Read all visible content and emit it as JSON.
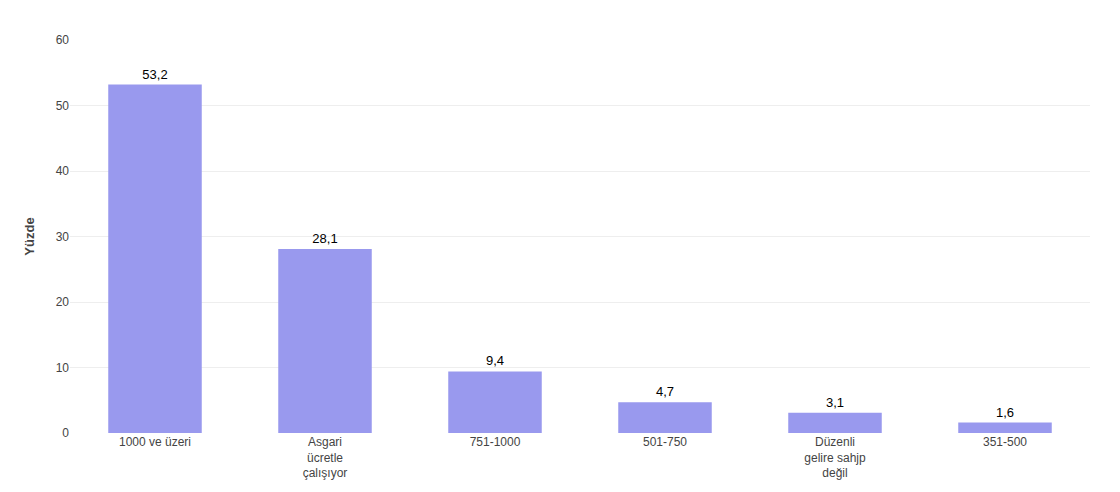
{
  "chart_data": {
    "type": "bar",
    "categories": [
      "1000 ve üzeri",
      "Asgari\nücretle\nçalışıyor",
      "751-1000",
      "501-750",
      "Düzenli\ngelire sahjp\ndeğil",
      "351-500"
    ],
    "values": [
      53.2,
      28.1,
      9.4,
      4.7,
      3.1,
      1.6
    ],
    "value_labels": [
      "53,2",
      "28,1",
      "9,4",
      "4,7",
      "3,1",
      "1,6"
    ],
    "data_labels": true,
    "color": "#9999ee",
    "ylabel": "Yüzde",
    "ylim": [
      0,
      60
    ],
    "yticks": [
      0,
      10,
      20,
      30,
      40,
      50,
      60
    ],
    "grid": true
  }
}
